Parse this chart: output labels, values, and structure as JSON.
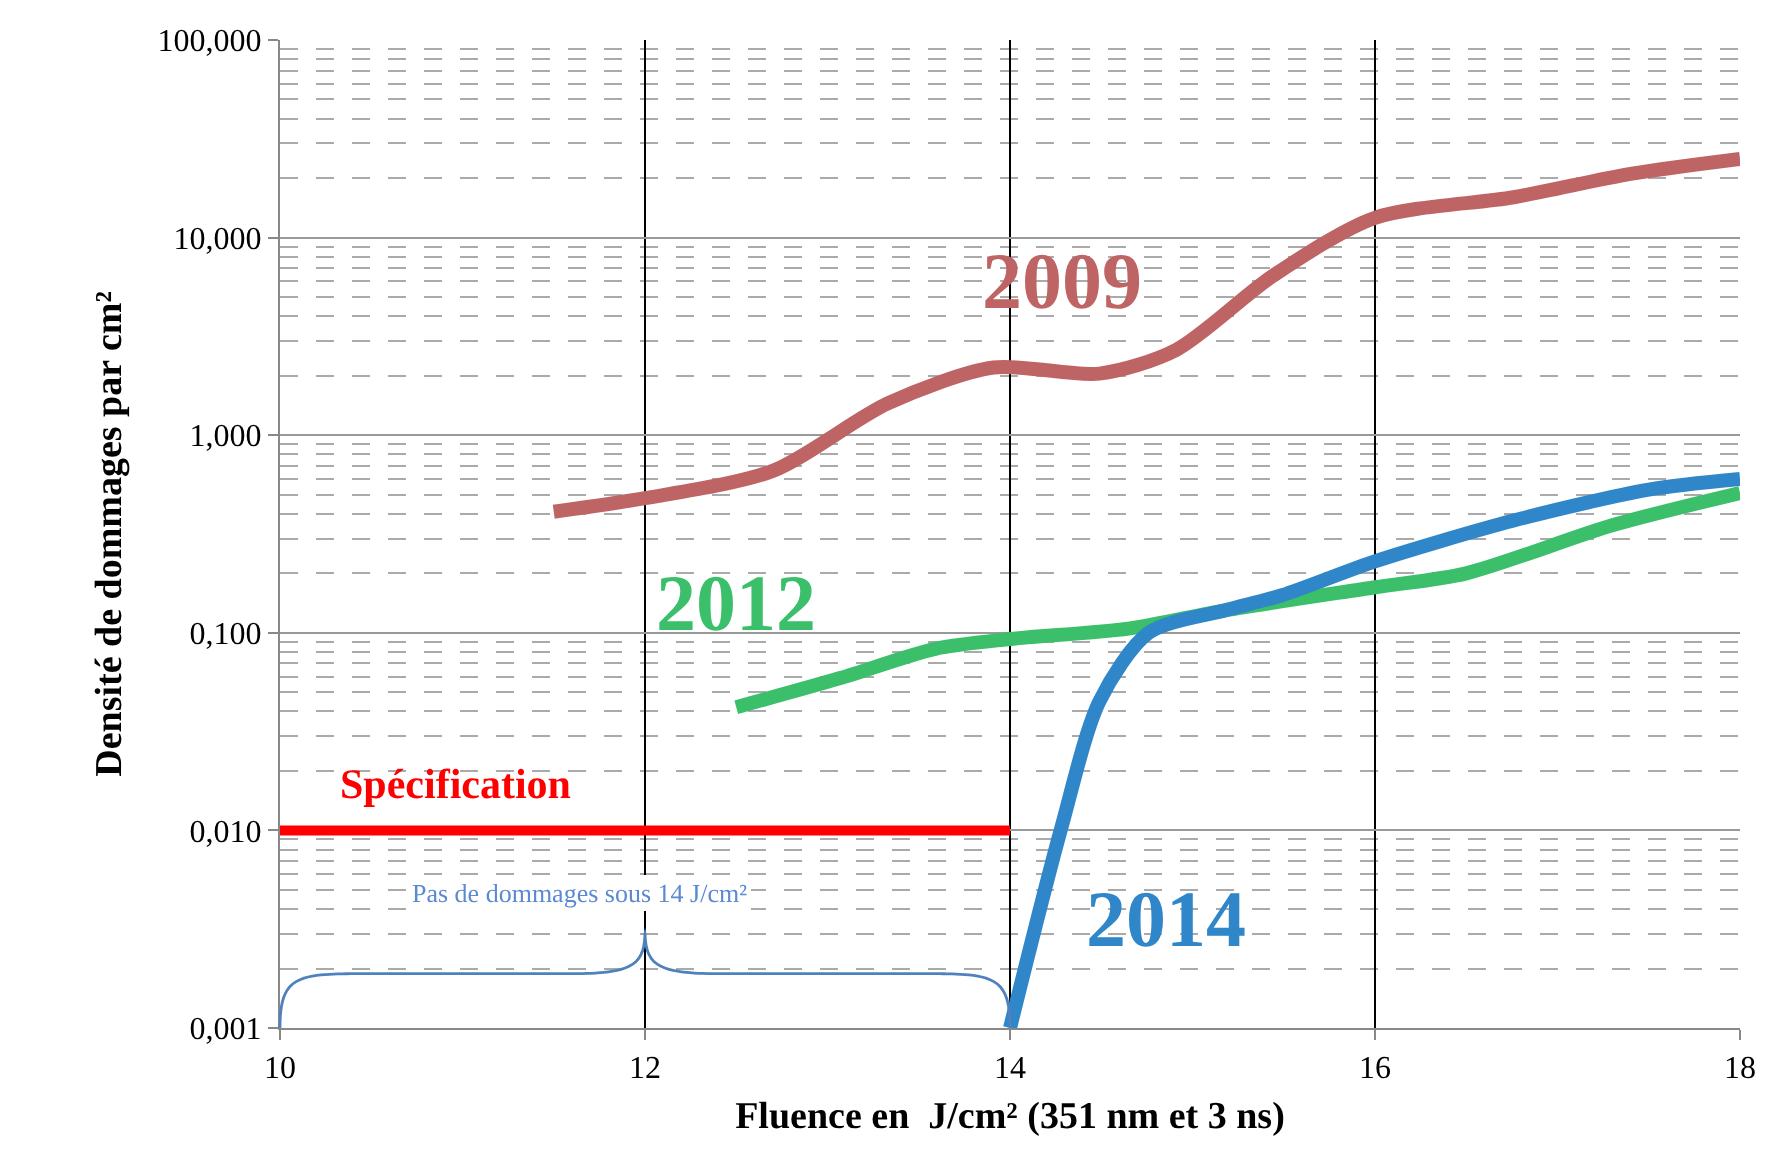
{
  "chart_data": {
    "type": "line",
    "xlabel": "Fluence en  J/cm² (351 nm et 3 ns)",
    "ylabel": "Densité de dommages par cm²",
    "log": "y",
    "grid": true,
    "legend": false,
    "line_style": "solid",
    "marker": "none",
    "xlim": [
      10,
      18
    ],
    "xticks": [
      10,
      12,
      14,
      16,
      18
    ],
    "ylim": [
      0.001,
      100
    ],
    "yticks": [
      {
        "value": 0.001,
        "label": "0,001"
      },
      {
        "value": 0.01,
        "label": "0,010"
      },
      {
        "value": 0.1,
        "label": "0,100"
      },
      {
        "value": 1,
        "label": "1,000"
      },
      {
        "value": 10,
        "label": "10,000"
      },
      {
        "value": 100,
        "label": "100,000"
      }
    ],
    "series": [
      {
        "name": "2009",
        "color": "#bf6464",
        "x": [
          11.5,
          12,
          12.7,
          13.33,
          13.91,
          14.49,
          14.91,
          15.44,
          16,
          16.76,
          17.4,
          18
        ],
        "values": [
          0.41,
          0.48,
          0.66,
          1.45,
          2.2,
          2.05,
          2.7,
          6.4,
          12.6,
          16,
          21,
          25
        ]
      },
      {
        "name": "2012",
        "color": "#3cbf6a",
        "x": [
          12.5,
          13.07,
          13.59,
          14,
          14.65,
          15.18,
          16,
          16.5,
          17.3,
          18
        ],
        "values": [
          0.042,
          0.059,
          0.083,
          0.093,
          0.105,
          0.13,
          0.17,
          0.2,
          0.35,
          0.51
        ]
      },
      {
        "name": "2014",
        "color": "#2f86c8",
        "x": [
          14,
          14.28,
          14.49,
          14.76,
          15.18,
          15.49,
          16,
          16.76,
          17.5,
          18
        ],
        "values": [
          0.001,
          0.0102,
          0.045,
          0.1,
          0.13,
          0.155,
          0.23,
          0.37,
          0.53,
          0.6
        ]
      },
      {
        "name": "Spécification",
        "color": "#ff0000",
        "x": [
          10,
          14
        ],
        "values": [
          0.01,
          0.01
        ]
      }
    ],
    "annotations": [
      "Pas de dommages sous 14 J/cm²"
    ]
  }
}
